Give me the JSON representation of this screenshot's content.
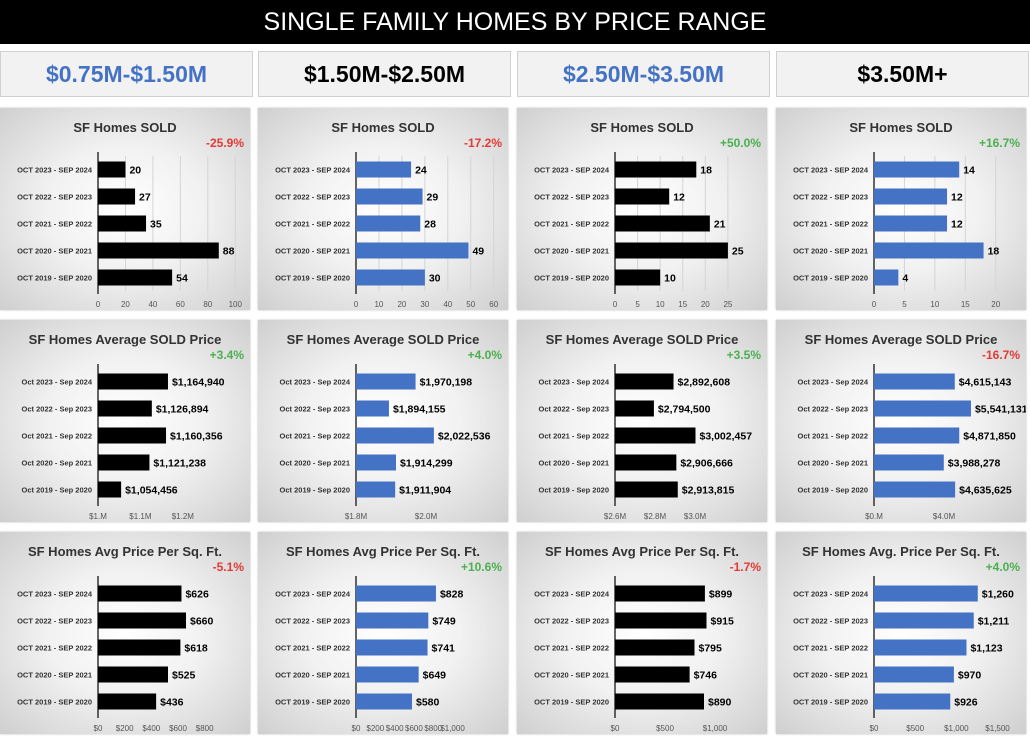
{
  "title": "SINGLE FAMILY HOMES BY PRICE RANGE",
  "price_ranges": [
    {
      "label": "$0.75M-$1.50M",
      "color": "#4472C4"
    },
    {
      "label": "$1.50M-$2.50M",
      "color": "#000000"
    },
    {
      "label": "$2.50M-$3.50M",
      "color": "#4472C4"
    },
    {
      "label": "$3.50M+",
      "color": "#000000"
    }
  ],
  "colors": {
    "black_bar": "#000000",
    "blue_bar": "#4472C4",
    "positive": "#4CAF50",
    "negative": "#E53935"
  },
  "chart_data": [
    {
      "type": "bar",
      "orientation": "horizontal",
      "row": 0,
      "col": 0,
      "title": "SF Homes SOLD",
      "change": "-25.9%",
      "bar_color": "#000000",
      "grid": true,
      "categories": [
        "OCT 2023 - SEP 2024",
        "OCT 2022 - SEP 2023",
        "OCT 2021 - SEP 2022",
        "OCT 2020 - SEP 2021",
        "OCT 2019 - SEP 2020"
      ],
      "values": [
        20,
        27,
        35,
        88,
        54
      ],
      "value_labels": [
        "20",
        "27",
        "35",
        "88",
        "54"
      ],
      "xlim": [
        0,
        102
      ],
      "ticks": [
        0,
        20,
        40,
        60,
        80,
        100
      ],
      "tick_labels": [
        "0",
        "20",
        "40",
        "60",
        "80",
        "100"
      ]
    },
    {
      "type": "bar",
      "orientation": "horizontal",
      "row": 0,
      "col": 1,
      "title": "SF Homes SOLD",
      "change": "-17.2%",
      "bar_color": "#4472C4",
      "grid": true,
      "categories": [
        "OCT 2023 - SEP 2024",
        "OCT 2022 - SEP 2023",
        "OCT 2021 - SEP 2022",
        "OCT 2020 - SEP 2021",
        "OCT 2019 - SEP 2020"
      ],
      "values": [
        24,
        29,
        28,
        49,
        30
      ],
      "value_labels": [
        "24",
        "29",
        "28",
        "49",
        "30"
      ],
      "xlim": [
        0,
        61
      ],
      "ticks": [
        0,
        10,
        20,
        30,
        40,
        50,
        60
      ],
      "tick_labels": [
        "0",
        "10",
        "20",
        "30",
        "40",
        "50",
        "60"
      ]
    },
    {
      "type": "bar",
      "orientation": "horizontal",
      "row": 0,
      "col": 2,
      "title": "SF Homes SOLD",
      "change": "+50.0%",
      "bar_color": "#000000",
      "grid": true,
      "categories": [
        "OCT 2023 - SEP 2024",
        "OCT 2022 - SEP 2023",
        "OCT 2021 - SEP 2022",
        "OCT 2020 - SEP 2021",
        "OCT 2019 - SEP 2020"
      ],
      "values": [
        18,
        12,
        21,
        25,
        10
      ],
      "value_labels": [
        "18",
        "12",
        "21",
        "25",
        "10"
      ],
      "xlim": [
        0,
        31
      ],
      "ticks": [
        0,
        5,
        10,
        15,
        20,
        25
      ],
      "tick_labels": [
        "0",
        "5",
        "10",
        "15",
        "20",
        "25"
      ]
    },
    {
      "type": "bar",
      "orientation": "horizontal",
      "row": 0,
      "col": 3,
      "title": "SF Homes SOLD",
      "change": "+16.7%",
      "bar_color": "#4472C4",
      "grid": true,
      "categories": [
        "OCT 2023 - SEP 2024",
        "OCT 2022 - SEP 2023",
        "OCT 2021 - SEP 2022",
        "OCT 2020 - SEP 2021",
        "OCT 2019 - SEP 2020"
      ],
      "values": [
        14,
        12,
        12,
        18,
        4
      ],
      "value_labels": [
        "14",
        "12",
        "12",
        "18",
        "4"
      ],
      "xlim": [
        0,
        23
      ],
      "ticks": [
        0,
        5,
        10,
        15,
        20
      ],
      "tick_labels": [
        "0",
        "5",
        "10",
        "15",
        "20"
      ]
    },
    {
      "type": "bar",
      "orientation": "horizontal",
      "row": 1,
      "col": 0,
      "title": "SF Homes Average SOLD Price",
      "change": "+3.4%",
      "bar_color": "#000000",
      "grid": false,
      "categories": [
        "Oct 2023 - Sep 2024",
        "Oct 2022 - Sep 2023",
        "Oct 2021 - Sep 2022",
        "Oct 2020 - Sep 2021",
        "Oct 2019 - Sep 2020"
      ],
      "values": [
        1164940,
        1126894,
        1160356,
        1121238,
        1054456
      ],
      "value_labels": [
        "$1,164,940",
        "$1,126,894",
        "$1,160,356",
        "$1,121,238",
        "$1,054,456"
      ],
      "xlim": [
        1000000,
        1330000
      ],
      "ticks": [
        1000000,
        1100000,
        1200000
      ],
      "tick_labels": [
        "$1.M",
        "$1.1M",
        "$1.2M"
      ]
    },
    {
      "type": "bar",
      "orientation": "horizontal",
      "row": 1,
      "col": 1,
      "title": "SF Homes Average SOLD Price",
      "change": "+4.0%",
      "bar_color": "#4472C4",
      "grid": false,
      "categories": [
        "Oct 2023 - Sep 2024",
        "Oct 2022 - Sep 2023",
        "Oct 2021 - Sep 2022",
        "Oct 2020 - Sep 2021",
        "Oct 2019 - Sep 2020"
      ],
      "values": [
        1970198,
        1894155,
        2022536,
        1914299,
        1911904
      ],
      "value_labels": [
        "$1,970,198",
        "$1,894,155",
        "$2,022,536",
        "$1,914,299",
        "$1,911,904"
      ],
      "xlim": [
        1800000,
        2200000
      ],
      "ticks": [
        1800000,
        2000000
      ],
      "tick_labels": [
        "$1.8M",
        "$2.0M"
      ]
    },
    {
      "type": "bar",
      "orientation": "horizontal",
      "row": 1,
      "col": 2,
      "title": "SF Homes Average SOLD Price",
      "change": "+3.5%",
      "bar_color": "#000000",
      "grid": false,
      "categories": [
        "Oct 2023 - Sep 2024",
        "Oct 2022 - Sep 2023",
        "Oct 2021 - Sep 2022",
        "Oct 2020 - Sep 2021",
        "Oct 2019 - Sep 2020"
      ],
      "values": [
        2892608,
        2794500,
        3002457,
        2906666,
        2913815
      ],
      "value_labels": [
        "$2,892,608",
        "$2,794,500",
        "$3,002,457",
        "$2,906,666",
        "$2,913,815"
      ],
      "xlim": [
        2600000,
        3300000
      ],
      "ticks": [
        2600000,
        2800000,
        3000000
      ],
      "tick_labels": [
        "$2.6M",
        "$2.8M",
        "$3.0M"
      ]
    },
    {
      "type": "bar",
      "orientation": "horizontal",
      "row": 1,
      "col": 3,
      "title": "SF Homes Average SOLD Price",
      "change": "-16.7%",
      "bar_color": "#4472C4",
      "grid": false,
      "categories": [
        "Oct 2023 - Sep 2024",
        "Oct 2022 - Sep 2023",
        "Oct 2021 - Sep 2022",
        "Oct 2020 - Sep 2021",
        "Oct 2019 - Sep 2020"
      ],
      "values": [
        4615143,
        5541131,
        4871850,
        3988278,
        4635625
      ],
      "value_labels": [
        "$4,615,143",
        "$5,541,131",
        "$4,871,850",
        "$3,988,278",
        "$4,635,625"
      ],
      "xlim": [
        0,
        8000000
      ],
      "ticks": [
        0,
        4000000
      ],
      "tick_labels": [
        "$0.M",
        "$4.0M"
      ]
    },
    {
      "type": "bar",
      "orientation": "horizontal",
      "row": 2,
      "col": 0,
      "title": "SF Homes Avg Price Per Sq. Ft.",
      "change": "-5.1%",
      "bar_color": "#000000",
      "grid": false,
      "categories": [
        "OCT 2023 - SEP 2024",
        "OCT 2022 - SEP 2023",
        "OCT 2021 - SEP 2022",
        "OCT 2020 - SEP 2021",
        "OCT 2019 - SEP 2020"
      ],
      "values": [
        626,
        660,
        618,
        525,
        436
      ],
      "value_labels": [
        "$626",
        "$660",
        "$618",
        "$525",
        "$436"
      ],
      "xlim": [
        0,
        1050
      ],
      "ticks": [
        0,
        200,
        400,
        600,
        800
      ],
      "tick_labels": [
        "$0",
        "$200",
        "$400",
        "$600",
        "$800"
      ]
    },
    {
      "type": "bar",
      "orientation": "horizontal",
      "row": 2,
      "col": 1,
      "title": "SF Homes Avg Price Per Sq. Ft.",
      "change": "+10.6%",
      "bar_color": "#4472C4",
      "grid": false,
      "categories": [
        "OCT 2023 - SEP 2024",
        "OCT 2022 - SEP 2023",
        "OCT 2021 - SEP 2022",
        "OCT 2020 - SEP 2021",
        "OCT 2019 - SEP 2020"
      ],
      "values": [
        828,
        749,
        741,
        649,
        580
      ],
      "value_labels": [
        "$828",
        "$749",
        "$741",
        "$649",
        "$580"
      ],
      "xlim": [
        0,
        1450
      ],
      "ticks": [
        0,
        200,
        400,
        600,
        800,
        1000
      ],
      "tick_labels": [
        "$0",
        "$200",
        "$400",
        "$600",
        "$800",
        "$1,000"
      ]
    },
    {
      "type": "bar",
      "orientation": "horizontal",
      "row": 2,
      "col": 2,
      "title": "SF Homes Avg Price Per Sq. Ft.",
      "change": "-1.7%",
      "bar_color": "#000000",
      "grid": false,
      "categories": [
        "OCT 2023 - SEP 2024",
        "OCT 2022 - SEP 2023",
        "OCT 2021 - SEP 2022",
        "OCT 2020 - SEP 2021",
        "OCT 2019 - SEP 2020"
      ],
      "values": [
        899,
        915,
        795,
        746,
        890
      ],
      "value_labels": [
        "$899",
        "$915",
        "$795",
        "$746",
        "$890"
      ],
      "xlim": [
        0,
        1400
      ],
      "ticks": [
        0,
        500,
        1000
      ],
      "tick_labels": [
        "$0",
        "$500",
        "$1,000"
      ]
    },
    {
      "type": "bar",
      "orientation": "horizontal",
      "row": 2,
      "col": 3,
      "title": "SF Homes Avg. Price Per Sq. Ft.",
      "change": "+4.0%",
      "bar_color": "#4472C4",
      "grid": false,
      "categories": [
        "OCT 2023 - SEP 2024",
        "OCT 2022 - SEP 2023",
        "OCT 2021 - SEP 2022",
        "OCT 2020 - SEP 2021",
        "OCT 2019 - SEP 2020"
      ],
      "values": [
        1260,
        1211,
        1123,
        970,
        926
      ],
      "value_labels": [
        "$1,260",
        "$1,211",
        "$1,123",
        "$970",
        "$926"
      ],
      "xlim": [
        0,
        1700
      ],
      "ticks": [
        0,
        500,
        1000,
        1500
      ],
      "tick_labels": [
        "$0",
        "$500",
        "$1,000",
        "$1,500"
      ]
    }
  ]
}
